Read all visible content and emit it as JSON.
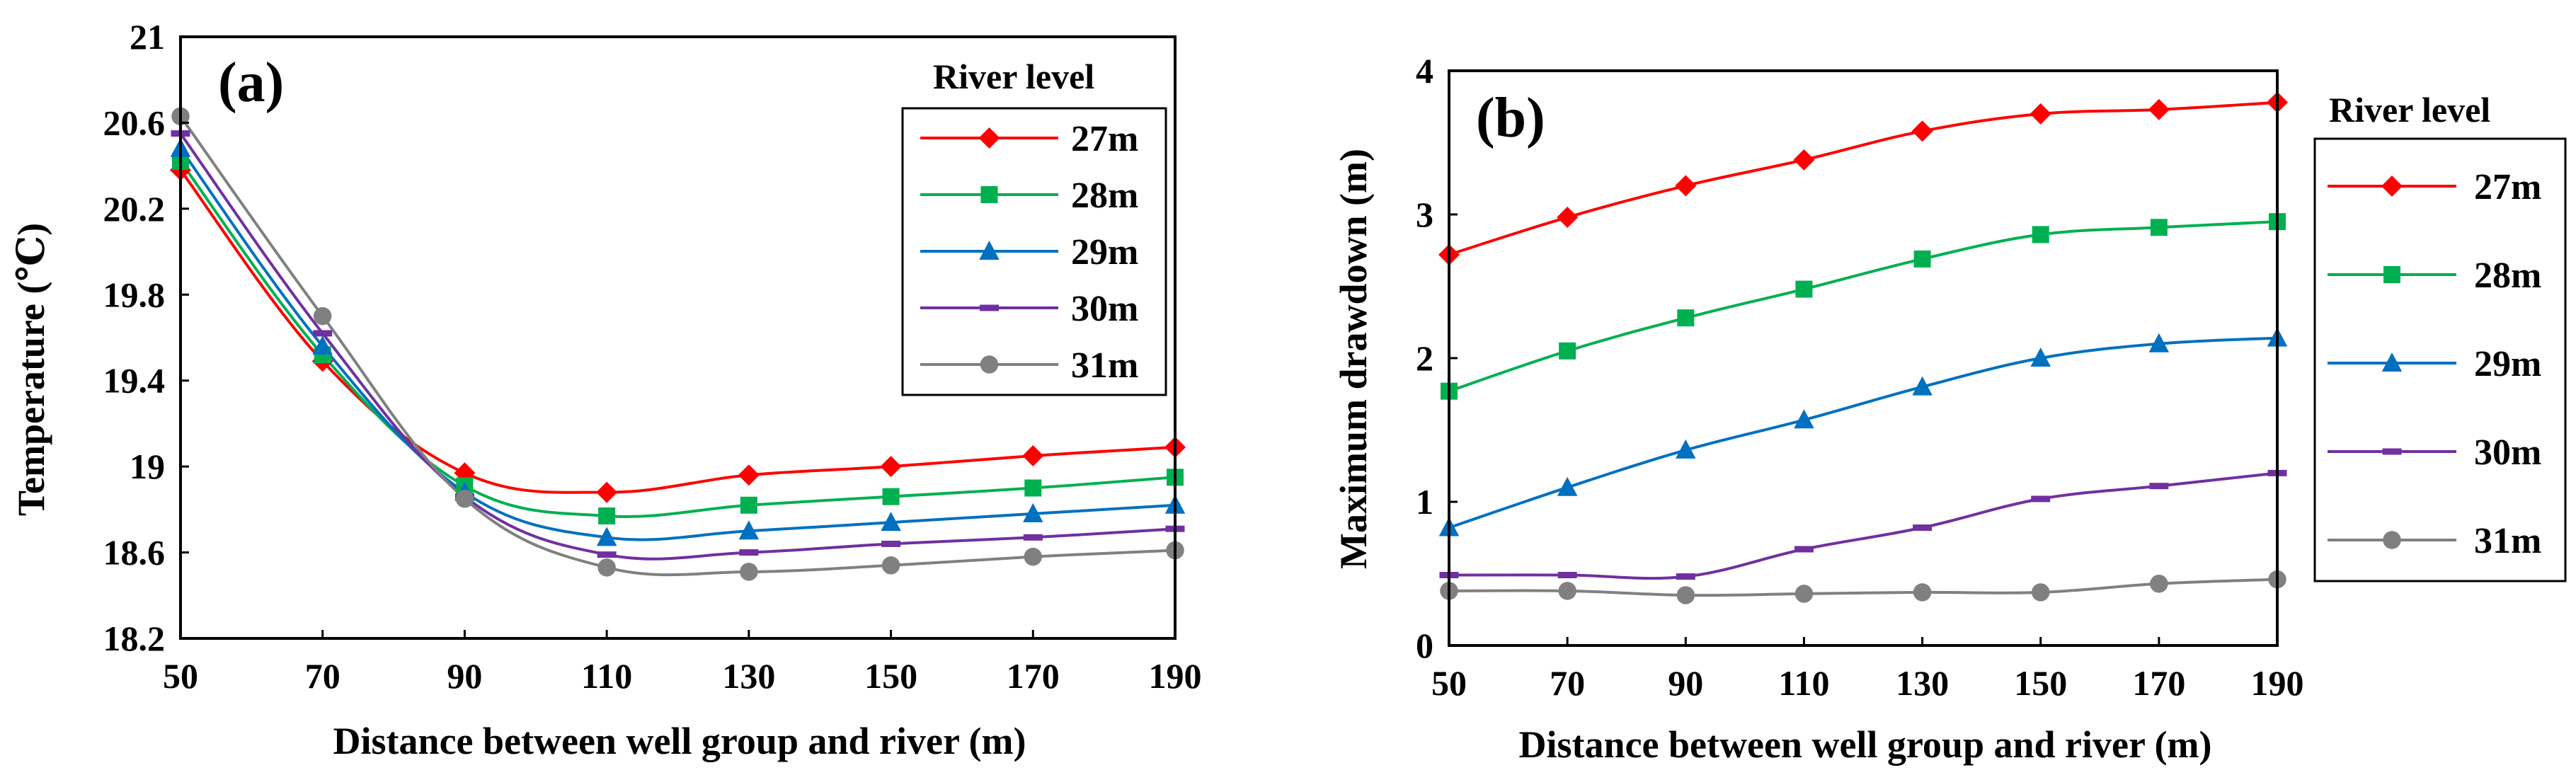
{
  "chart_data": [
    {
      "type": "line",
      "panel_label": "(a)",
      "x": [
        50,
        70,
        90,
        110,
        130,
        150,
        170,
        190
      ],
      "xticks": [
        "50",
        "70",
        "90",
        "110",
        "130",
        "150",
        "170",
        "190"
      ],
      "xlim": [
        50,
        190
      ],
      "yticks": [
        "18.2",
        "18.6",
        "19",
        "19.4",
        "19.8",
        "20.2",
        "20.6",
        "21"
      ],
      "ylim": [
        18.2,
        21
      ],
      "xlabel": "Distance between well group and river (m)",
      "ylabel": "Temperature (℃)",
      "legend_title": "River level",
      "legend_position": "top-right",
      "series": [
        {
          "name": "27m",
          "color": "#ff0000",
          "marker": "diamond",
          "values": [
            20.38,
            19.49,
            18.97,
            18.88,
            18.96,
            19.0,
            19.05,
            19.09
          ]
        },
        {
          "name": "28m",
          "color": "#00b050",
          "marker": "square",
          "values": [
            20.42,
            19.52,
            18.91,
            18.77,
            18.82,
            18.86,
            18.9,
            18.95
          ]
        },
        {
          "name": "29m",
          "color": "#0070c0",
          "marker": "triangle",
          "values": [
            20.48,
            19.56,
            18.88,
            18.67,
            18.7,
            18.74,
            18.78,
            18.82
          ]
        },
        {
          "name": "30m",
          "color": "#7030a0",
          "marker": "dash",
          "values": [
            20.55,
            19.62,
            18.86,
            18.59,
            18.6,
            18.64,
            18.67,
            18.71
          ]
        },
        {
          "name": "31m",
          "color": "#808080",
          "marker": "circle",
          "values": [
            20.63,
            19.7,
            18.85,
            18.53,
            18.51,
            18.54,
            18.58,
            18.61
          ]
        }
      ]
    },
    {
      "type": "line",
      "panel_label": "(b)",
      "x": [
        50,
        70,
        90,
        110,
        130,
        150,
        170,
        190
      ],
      "xticks": [
        "50",
        "70",
        "90",
        "110",
        "130",
        "150",
        "170",
        "190"
      ],
      "xlim": [
        50,
        190
      ],
      "yticks": [
        "0",
        "1",
        "2",
        "3",
        "4"
      ],
      "ylim": [
        0,
        4
      ],
      "xlabel": "Distance between well group and river (m)",
      "ylabel": "Maximum drawdown (m)",
      "legend_title": "River level",
      "legend_position": "right",
      "series": [
        {
          "name": "27m",
          "color": "#ff0000",
          "marker": "diamond",
          "values": [
            2.72,
            2.98,
            3.2,
            3.38,
            3.58,
            3.7,
            3.73,
            3.78
          ]
        },
        {
          "name": "28m",
          "color": "#00b050",
          "marker": "square",
          "values": [
            1.77,
            2.05,
            2.28,
            2.48,
            2.69,
            2.86,
            2.91,
            2.95
          ]
        },
        {
          "name": "29m",
          "color": "#0070c0",
          "marker": "triangle",
          "values": [
            0.82,
            1.1,
            1.36,
            1.57,
            1.8,
            2.0,
            2.1,
            2.14
          ]
        },
        {
          "name": "30m",
          "color": "#7030a0",
          "marker": "dash",
          "values": [
            0.49,
            0.49,
            0.48,
            0.67,
            0.82,
            1.02,
            1.11,
            1.2
          ]
        },
        {
          "name": "31m",
          "color": "#808080",
          "marker": "circle",
          "values": [
            0.38,
            0.38,
            0.35,
            0.36,
            0.37,
            0.37,
            0.43,
            0.46
          ]
        }
      ]
    }
  ]
}
